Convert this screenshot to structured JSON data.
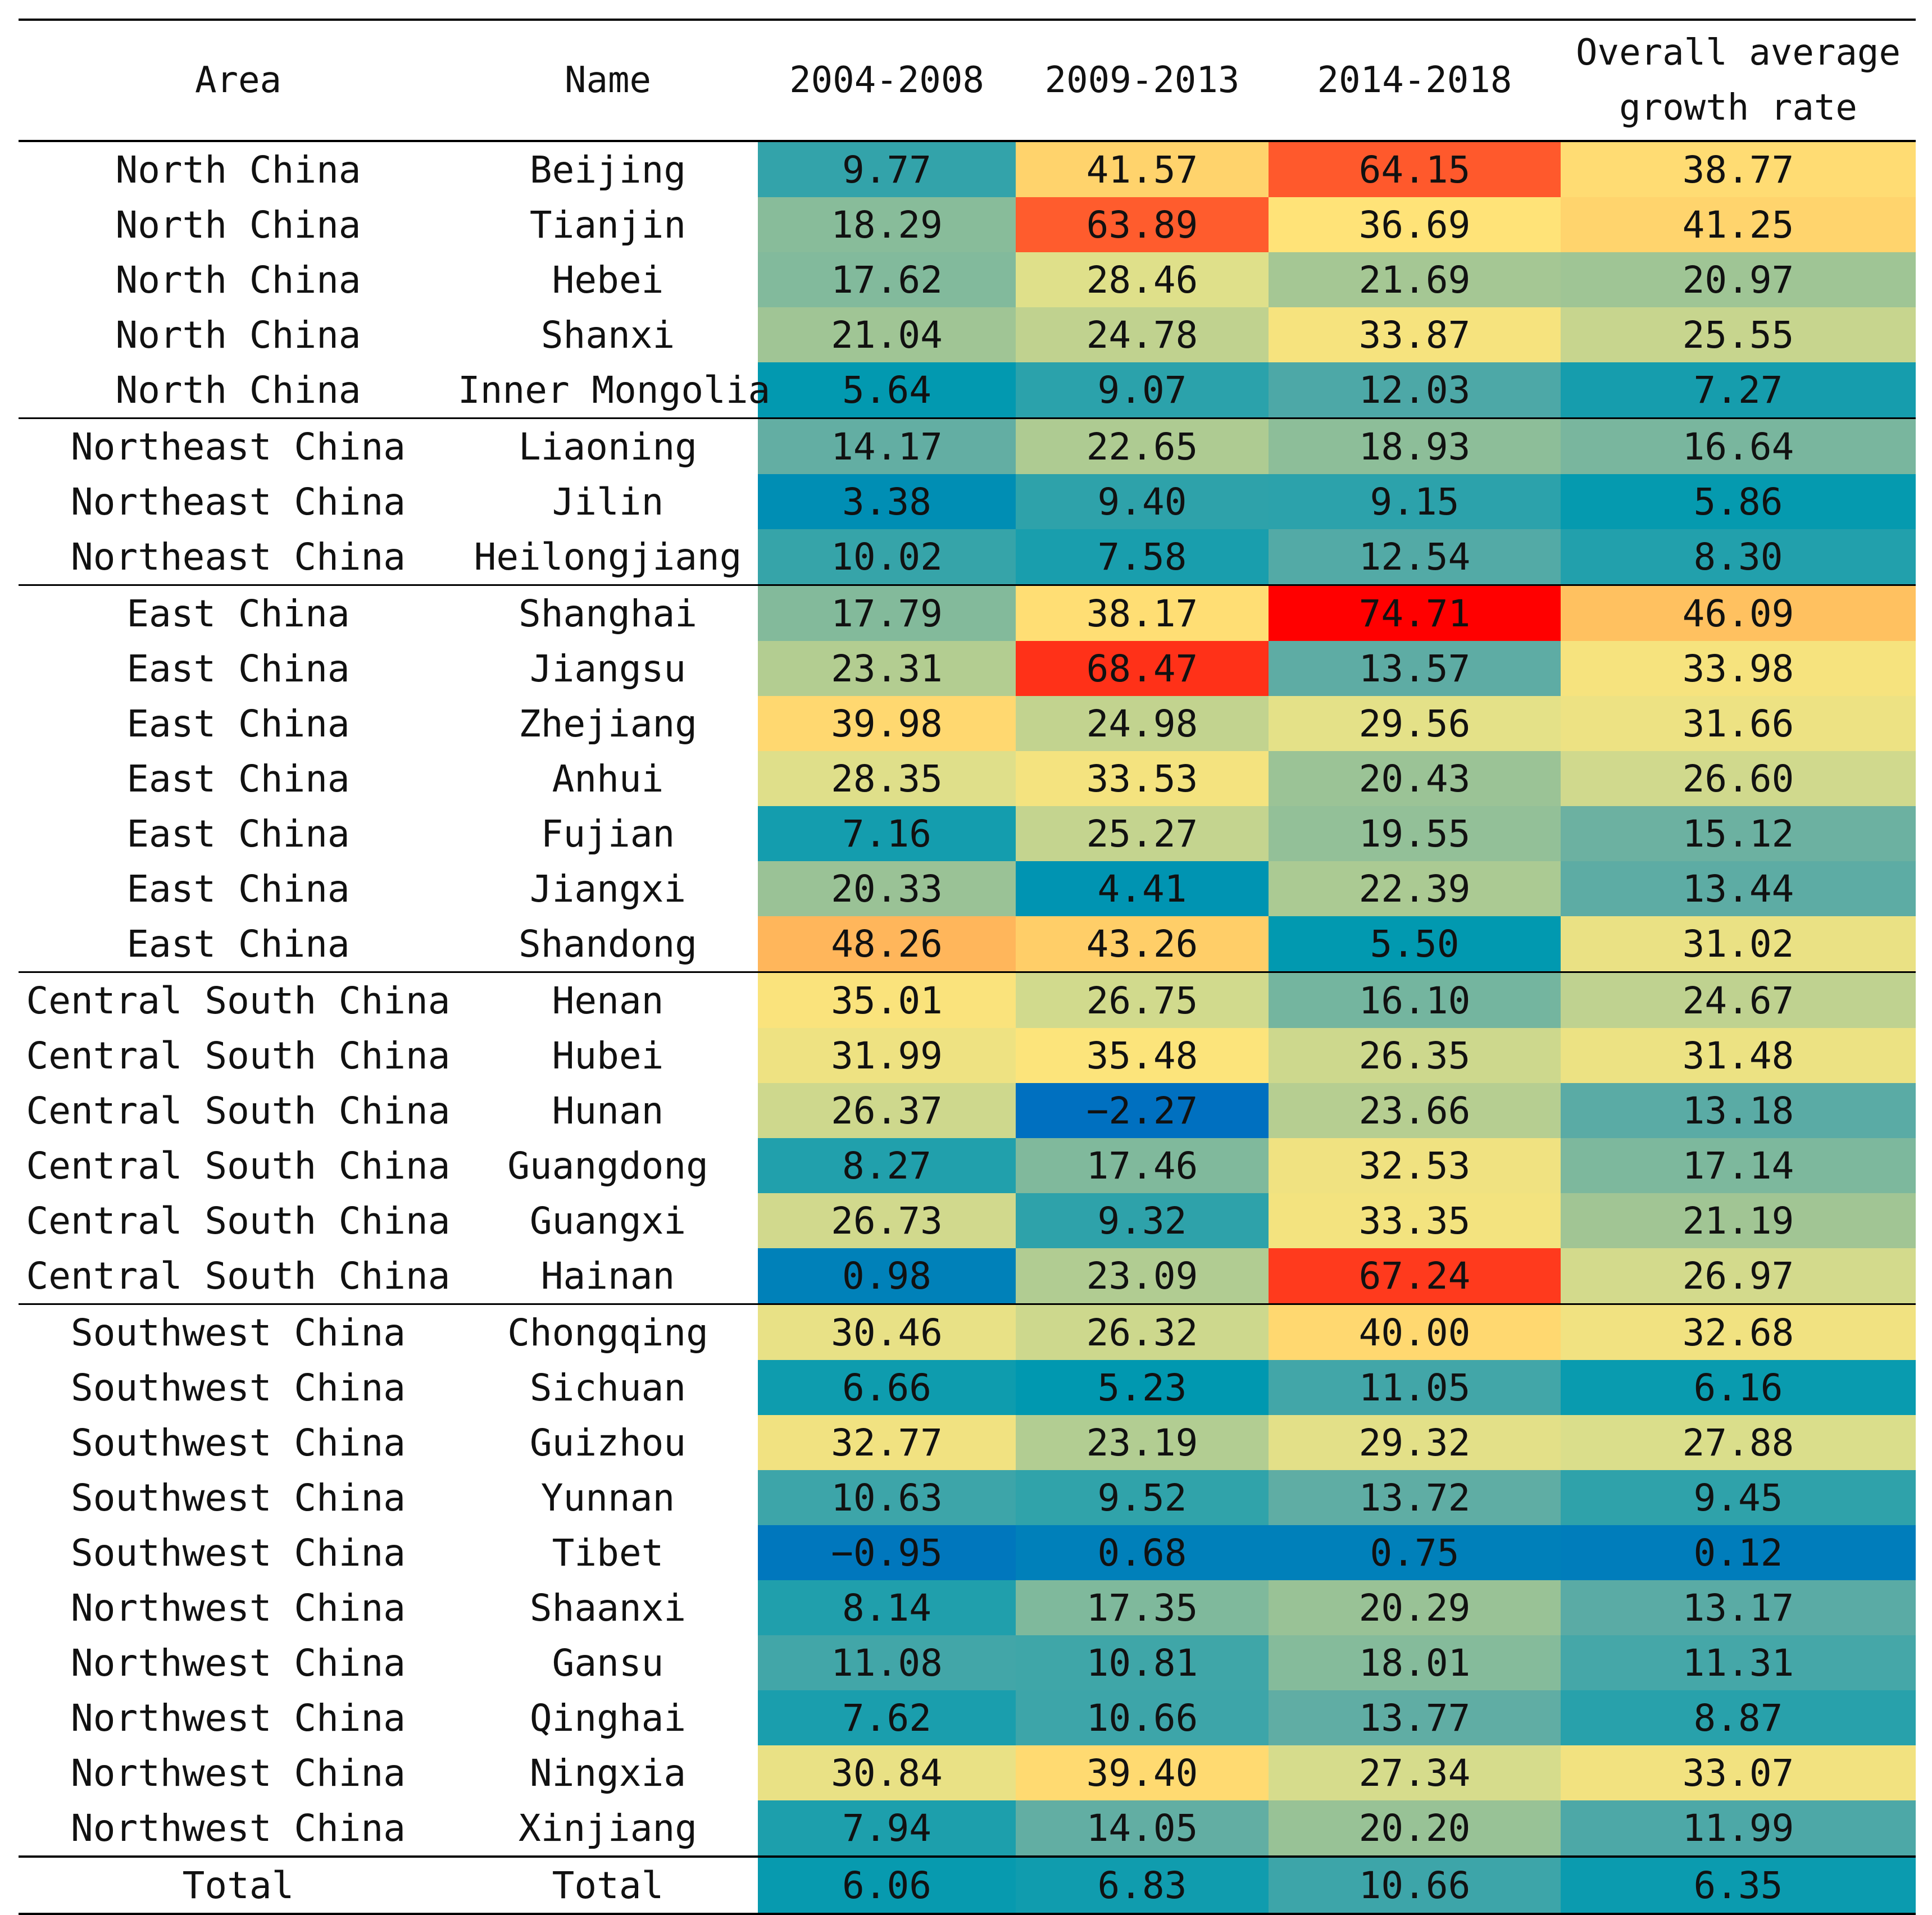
{
  "chart_data": {
    "type": "table",
    "title": "",
    "columns": [
      "Area",
      "Name",
      "2004-2008",
      "2009-2013",
      "2014-2018",
      "Overall average growth rate"
    ],
    "rows": [
      {
        "area": "North China",
        "name": "Beijing",
        "values": [
          "9.77",
          "41.57",
          "64.15",
          "38.77"
        ]
      },
      {
        "area": "North China",
        "name": "Tianjin",
        "values": [
          "18.29",
          "63.89",
          "36.69",
          "41.25"
        ]
      },
      {
        "area": "North China",
        "name": "Hebei",
        "values": [
          "17.62",
          "28.46",
          "21.69",
          "20.97"
        ]
      },
      {
        "area": "North China",
        "name": "Shanxi",
        "values": [
          "21.04",
          "24.78",
          "33.87",
          "25.55"
        ]
      },
      {
        "area": "North China",
        "name": "Inner Mongolia",
        "values": [
          "5.64",
          "9.07",
          "12.03",
          "7.27"
        ]
      },
      {
        "area": "Northeast China",
        "name": "Liaoning",
        "values": [
          "14.17",
          "22.65",
          "18.93",
          "16.64"
        ]
      },
      {
        "area": "Northeast China",
        "name": "Jilin",
        "values": [
          "3.38",
          "9.40",
          "9.15",
          "5.86"
        ]
      },
      {
        "area": "Northeast China",
        "name": "Heilongjiang",
        "values": [
          "10.02",
          "7.58",
          "12.54",
          "8.30"
        ]
      },
      {
        "area": "East China",
        "name": "Shanghai",
        "values": [
          "17.79",
          "38.17",
          "74.71",
          "46.09"
        ]
      },
      {
        "area": "East China",
        "name": "Jiangsu",
        "values": [
          "23.31",
          "68.47",
          "13.57",
          "33.98"
        ]
      },
      {
        "area": "East China",
        "name": "Zhejiang",
        "values": [
          "39.98",
          "24.98",
          "29.56",
          "31.66"
        ]
      },
      {
        "area": "East China",
        "name": "Anhui",
        "values": [
          "28.35",
          "33.53",
          "20.43",
          "26.60"
        ]
      },
      {
        "area": "East China",
        "name": "Fujian",
        "values": [
          "7.16",
          "25.27",
          "19.55",
          "15.12"
        ]
      },
      {
        "area": "East China",
        "name": "Jiangxi",
        "values": [
          "20.33",
          "4.41",
          "22.39",
          "13.44"
        ]
      },
      {
        "area": "East China",
        "name": "Shandong",
        "values": [
          "48.26",
          "43.26",
          "5.50",
          "31.02"
        ]
      },
      {
        "area": "Central South China",
        "name": "Henan",
        "values": [
          "35.01",
          "26.75",
          "16.10",
          "24.67"
        ]
      },
      {
        "area": "Central South China",
        "name": "Hubei",
        "values": [
          "31.99",
          "35.48",
          "26.35",
          "31.48"
        ]
      },
      {
        "area": "Central South China",
        "name": "Hunan",
        "values": [
          "26.37",
          "−2.27",
          "23.66",
          "13.18"
        ]
      },
      {
        "area": "Central South China",
        "name": "Guangdong",
        "values": [
          "8.27",
          "17.46",
          "32.53",
          "17.14"
        ]
      },
      {
        "area": "Central South China",
        "name": "Guangxi",
        "values": [
          "26.73",
          "9.32",
          "33.35",
          "21.19"
        ]
      },
      {
        "area": "Central South China",
        "name": "Hainan",
        "values": [
          "0.98",
          "23.09",
          "67.24",
          "26.97"
        ]
      },
      {
        "area": "Southwest China",
        "name": "Chongqing",
        "values": [
          "30.46",
          "26.32",
          "40.00",
          "32.68"
        ]
      },
      {
        "area": "Southwest China",
        "name": "Sichuan",
        "values": [
          "6.66",
          "5.23",
          "11.05",
          "6.16"
        ]
      },
      {
        "area": "Southwest China",
        "name": "Guizhou",
        "values": [
          "32.77",
          "23.19",
          "29.32",
          "27.88"
        ]
      },
      {
        "area": "Southwest China",
        "name": "Yunnan",
        "values": [
          "10.63",
          "9.52",
          "13.72",
          "9.45"
        ]
      },
      {
        "area": "Southwest China",
        "name": "Tibet",
        "values": [
          "−0.95",
          "0.68",
          "0.75",
          "0.12"
        ]
      },
      {
        "area": "Northwest China",
        "name": "Shaanxi",
        "values": [
          "8.14",
          "17.35",
          "20.29",
          "13.17"
        ]
      },
      {
        "area": "Northwest China",
        "name": "Gansu",
        "values": [
          "11.08",
          "10.81",
          "18.01",
          "11.31"
        ]
      },
      {
        "area": "Northwest China",
        "name": "Qinghai",
        "values": [
          "7.62",
          "10.66",
          "13.77",
          "8.87"
        ]
      },
      {
        "area": "Northwest China",
        "name": "Ningxia",
        "values": [
          "30.84",
          "39.40",
          "27.34",
          "33.07"
        ]
      },
      {
        "area": "Northwest China",
        "name": "Xinjiang",
        "values": [
          "7.94",
          "14.05",
          "20.20",
          "11.99"
        ]
      },
      {
        "area": "Total",
        "name": "Total",
        "values": [
          "6.06",
          "6.83",
          "10.66",
          "6.35"
        ]
      }
    ],
    "group_boundaries_before_row": [
      5,
      8,
      15,
      21,
      31
    ],
    "color_scale": {
      "min": -2.27,
      "max": 74.71,
      "stops": [
        "#0070c0",
        "#0099b0",
        "#5aaba5",
        "#9ec495",
        "#e0e08a",
        "#ffe479",
        "#ffcc66",
        "#ffa552",
        "#ff8a44",
        "#ff3c1e",
        "#ff0000"
      ]
    }
  }
}
